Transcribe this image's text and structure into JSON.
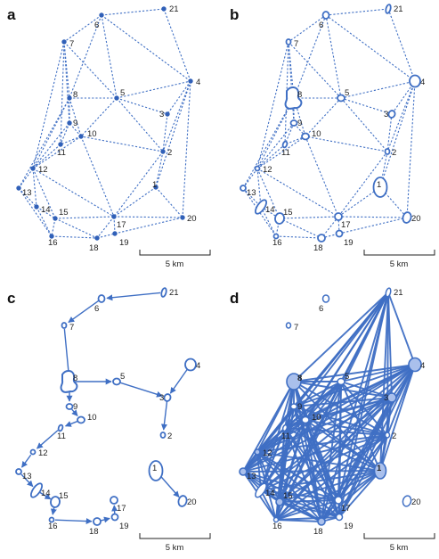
{
  "colors": {
    "network": "#3f6fc4",
    "node_fill": "#3060b8",
    "patch_fill": "#aac0ec",
    "text": "#222222"
  },
  "panels": [
    {
      "id": "a",
      "label": "a",
      "edge_style": "dashed",
      "patch_shape": "dot",
      "scale_label": "5 km"
    },
    {
      "id": "b",
      "label": "b",
      "edge_style": "dashed",
      "patch_shape": "outline",
      "scale_label": "5 km"
    },
    {
      "id": "c",
      "label": "c",
      "edge_style": "arrow",
      "patch_shape": "outline",
      "scale_label": "5 km"
    },
    {
      "id": "d",
      "label": "d",
      "edge_style": "solid",
      "patch_shape": "filled-large",
      "scale_label": "5 km"
    }
  ],
  "nodes": [
    {
      "id": "1"
    },
    {
      "id": "2"
    },
    {
      "id": "3"
    },
    {
      "id": "4"
    },
    {
      "id": "5"
    },
    {
      "id": "6"
    },
    {
      "id": "7"
    },
    {
      "id": "8"
    },
    {
      "id": "9"
    },
    {
      "id": "10"
    },
    {
      "id": "11"
    },
    {
      "id": "12"
    },
    {
      "id": "13"
    },
    {
      "id": "14"
    },
    {
      "id": "15"
    },
    {
      "id": "16"
    },
    {
      "id": "17"
    },
    {
      "id": "18"
    },
    {
      "id": "19"
    },
    {
      "id": "20"
    },
    {
      "id": "21"
    }
  ],
  "triangulation_edges": [
    [
      "6",
      "21"
    ],
    [
      "6",
      "7"
    ],
    [
      "6",
      "5"
    ],
    [
      "6",
      "4"
    ],
    [
      "21",
      "4"
    ],
    [
      "6",
      "8"
    ],
    [
      "7",
      "8"
    ],
    [
      "7",
      "5"
    ],
    [
      "7",
      "9"
    ],
    [
      "7",
      "11"
    ],
    [
      "7",
      "12"
    ],
    [
      "8",
      "5"
    ],
    [
      "8",
      "9"
    ],
    [
      "8",
      "10"
    ],
    [
      "8",
      "12"
    ],
    [
      "8",
      "13"
    ],
    [
      "5",
      "4"
    ],
    [
      "5",
      "3"
    ],
    [
      "5",
      "2"
    ],
    [
      "5",
      "10"
    ],
    [
      "4",
      "3"
    ],
    [
      "4",
      "2"
    ],
    [
      "4",
      "1"
    ],
    [
      "4",
      "20"
    ],
    [
      "3",
      "2"
    ],
    [
      "2",
      "1"
    ],
    [
      "2",
      "10"
    ],
    [
      "2",
      "17"
    ],
    [
      "1",
      "20"
    ],
    [
      "1",
      "17"
    ],
    [
      "10",
      "9"
    ],
    [
      "10",
      "11"
    ],
    [
      "10",
      "12"
    ],
    [
      "10",
      "17"
    ],
    [
      "9",
      "11"
    ],
    [
      "9",
      "12"
    ],
    [
      "11",
      "12"
    ],
    [
      "12",
      "13"
    ],
    [
      "12",
      "14"
    ],
    [
      "12",
      "15"
    ],
    [
      "12",
      "17"
    ],
    [
      "13",
      "14"
    ],
    [
      "13",
      "16"
    ],
    [
      "14",
      "15"
    ],
    [
      "14",
      "16"
    ],
    [
      "15",
      "16"
    ],
    [
      "15",
      "17"
    ],
    [
      "15",
      "18"
    ],
    [
      "16",
      "18"
    ],
    [
      "17",
      "18"
    ],
    [
      "17",
      "19"
    ],
    [
      "17",
      "20"
    ],
    [
      "18",
      "19"
    ],
    [
      "19",
      "20"
    ]
  ],
  "path_edges": [
    [
      "21",
      "6"
    ],
    [
      "6",
      "7"
    ],
    [
      "7",
      "8"
    ],
    [
      "8",
      "9"
    ],
    [
      "9",
      "10"
    ],
    [
      "10",
      "11"
    ],
    [
      "11",
      "12"
    ],
    [
      "12",
      "13"
    ],
    [
      "13",
      "14"
    ],
    [
      "14",
      "15"
    ],
    [
      "15",
      "16"
    ],
    [
      "16",
      "18"
    ],
    [
      "18",
      "19"
    ],
    [
      "19",
      "17"
    ],
    [
      "8",
      "5"
    ],
    [
      "5",
      "3"
    ],
    [
      "4",
      "3"
    ],
    [
      "3",
      "2"
    ],
    [
      "1",
      "20"
    ]
  ],
  "complete_graph_nodes": [
    "21",
    "4",
    "8",
    "5",
    "3",
    "2",
    "9",
    "10",
    "11",
    "12",
    "13",
    "14",
    "15",
    "16",
    "17",
    "18",
    "19",
    "1"
  ],
  "isolated_nodes_d": [
    "6",
    "7",
    "20"
  ]
}
